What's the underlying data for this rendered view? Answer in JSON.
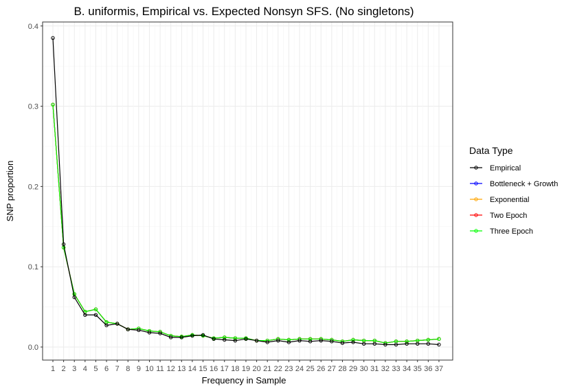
{
  "chart_data": {
    "type": "line",
    "title": "B. uniformis, Empirical vs. Expected Nonsyn SFS. (No singletons)",
    "xlabel": "Frequency in Sample",
    "ylabel": "SNP proportion",
    "ylim": [
      0,
      0.4
    ],
    "y_ticks": [
      "0.0",
      "0.1",
      "0.2",
      "0.3",
      "0.4"
    ],
    "categories": [
      "1",
      "2",
      "3",
      "4",
      "5",
      "6",
      "7",
      "8",
      "9",
      "10",
      "11",
      "12",
      "13",
      "14",
      "15",
      "16",
      "17",
      "18",
      "19",
      "20",
      "21",
      "22",
      "23",
      "24",
      "25",
      "26",
      "27",
      "28",
      "29",
      "30",
      "31",
      "32",
      "33",
      "34",
      "35",
      "36",
      "37"
    ],
    "grid": true,
    "legend": {
      "title": "Data Type",
      "position": "right"
    },
    "series": [
      {
        "name": "Empirical",
        "color": "#000000",
        "values": [
          0.385,
          0.128,
          0.062,
          0.04,
          0.04,
          0.027,
          0.029,
          0.022,
          0.021,
          0.018,
          0.017,
          0.012,
          0.012,
          0.014,
          0.015,
          0.01,
          0.009,
          0.008,
          0.01,
          0.008,
          0.006,
          0.008,
          0.006,
          0.008,
          0.007,
          0.008,
          0.007,
          0.005,
          0.006,
          0.004,
          0.004,
          0.003,
          0.003,
          0.004,
          0.004,
          0.004,
          0.003
        ]
      },
      {
        "name": "Bottleneck + Growth",
        "color": "#0000ff",
        "values": [
          0.302,
          0.124,
          0.066,
          0.044,
          0.047,
          0.031,
          0.029,
          0.022,
          0.023,
          0.02,
          0.019,
          0.014,
          0.013,
          0.015,
          0.014,
          0.011,
          0.012,
          0.011,
          0.011,
          0.008,
          0.008,
          0.01,
          0.009,
          0.01,
          0.01,
          0.01,
          0.009,
          0.007,
          0.009,
          0.008,
          0.008,
          0.005,
          0.007,
          0.007,
          0.008,
          0.009,
          0.01
        ]
      },
      {
        "name": "Exponential",
        "color": "#ffa500",
        "values": [
          0.302,
          0.124,
          0.066,
          0.044,
          0.047,
          0.031,
          0.029,
          0.022,
          0.023,
          0.02,
          0.019,
          0.014,
          0.013,
          0.015,
          0.014,
          0.011,
          0.012,
          0.011,
          0.011,
          0.008,
          0.008,
          0.01,
          0.009,
          0.01,
          0.01,
          0.01,
          0.009,
          0.007,
          0.009,
          0.008,
          0.008,
          0.005,
          0.007,
          0.007,
          0.008,
          0.009,
          0.01
        ]
      },
      {
        "name": "Two Epoch",
        "color": "#ff0000",
        "values": [
          0.302,
          0.124,
          0.066,
          0.044,
          0.047,
          0.031,
          0.029,
          0.022,
          0.023,
          0.02,
          0.019,
          0.014,
          0.013,
          0.015,
          0.014,
          0.011,
          0.012,
          0.011,
          0.011,
          0.008,
          0.008,
          0.01,
          0.009,
          0.01,
          0.01,
          0.01,
          0.009,
          0.007,
          0.009,
          0.008,
          0.008,
          0.005,
          0.007,
          0.007,
          0.008,
          0.009,
          0.01
        ]
      },
      {
        "name": "Three Epoch",
        "color": "#00ff00",
        "values": [
          0.302,
          0.124,
          0.066,
          0.044,
          0.047,
          0.031,
          0.029,
          0.022,
          0.023,
          0.02,
          0.019,
          0.014,
          0.013,
          0.015,
          0.014,
          0.011,
          0.012,
          0.011,
          0.011,
          0.008,
          0.008,
          0.01,
          0.009,
          0.01,
          0.01,
          0.01,
          0.009,
          0.007,
          0.009,
          0.008,
          0.008,
          0.005,
          0.007,
          0.007,
          0.008,
          0.009,
          0.01
        ]
      }
    ]
  },
  "style": {
    "panel_background": "#ffffff",
    "panel_border": "#333333",
    "grid_major": "#ebebeb",
    "grid_minor": "#f5f5f5"
  }
}
